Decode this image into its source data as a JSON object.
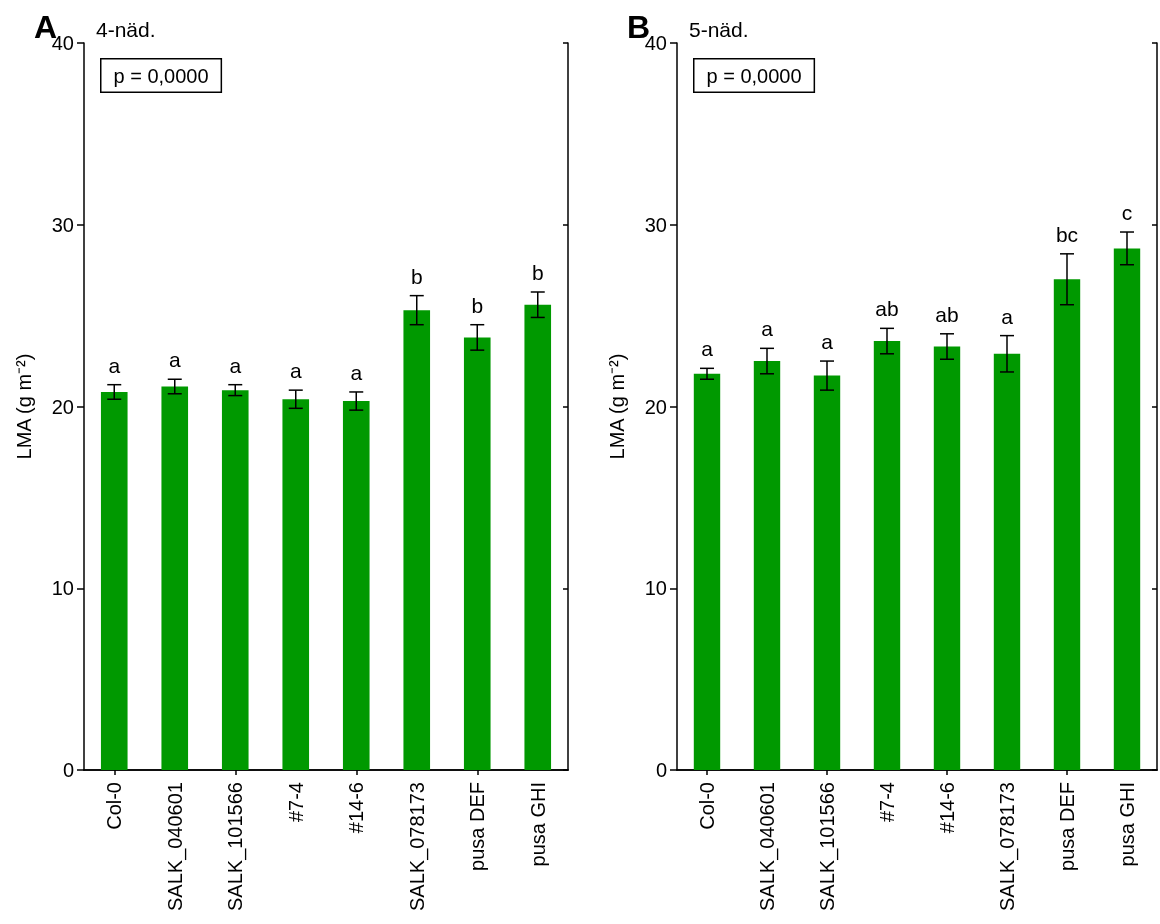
{
  "chart_data": [
    {
      "type": "bar",
      "title": "A",
      "subtitle": "4-näd.",
      "ylabel": "LMA (g m⁻²)",
      "categories": [
        "Col-0",
        "SALK_040601",
        "SALK_101566",
        "#7-4",
        "#14-6",
        "SALK_078173",
        "pusa DEF",
        "pusa GHI"
      ],
      "values": [
        20.8,
        21.1,
        20.9,
        20.4,
        20.3,
        25.3,
        23.8,
        25.6
      ],
      "errors": [
        0.4,
        0.4,
        0.3,
        0.5,
        0.5,
        0.8,
        0.7,
        0.7
      ],
      "color": "#009900",
      "ylim": [
        0,
        40
      ],
      "yticks": [
        0,
        10,
        20,
        30,
        40
      ],
      "annotations": [
        "p = 0,0000",
        {
          "text": "a",
          "x": "Col-0",
          "y": 21.2
        },
        {
          "text": "a",
          "x": "SALK_040601",
          "y": 21.5
        },
        {
          "text": "a",
          "x": "SALK_101566",
          "y": 21.2
        },
        {
          "text": "a",
          "x": "#7-4",
          "y": 20.9
        },
        {
          "text": "a",
          "x": "#14-6",
          "y": 20.8
        },
        {
          "text": "b",
          "x": "SALK_078173",
          "y": 26.1
        },
        {
          "text": "b",
          "x": "pusa DEF",
          "y": 24.5
        },
        {
          "text": "b",
          "x": "pusa GHI",
          "y": 26.3
        }
      ]
    },
    {
      "type": "bar",
      "title": "B",
      "subtitle": "5-näd.",
      "ylabel": "LMA (g m⁻²)",
      "categories": [
        "Col-0",
        "SALK_040601",
        "SALK_101566",
        "#7-4",
        "#14-6",
        "SALK_078173",
        "pusa DEF",
        "pusa GHI"
      ],
      "values": [
        21.8,
        22.5,
        21.7,
        23.6,
        23.3,
        22.9,
        27.0,
        28.7
      ],
      "errors": [
        0.3,
        0.7,
        0.8,
        0.7,
        0.7,
        1.0,
        1.4,
        0.9
      ],
      "color": "#009900",
      "ylim": [
        0,
        40
      ],
      "yticks": [
        0,
        10,
        20,
        30,
        40
      ],
      "annotations": [
        "p = 0,0000",
        {
          "text": "a",
          "x": "Col-0",
          "y": 22.1
        },
        {
          "text": "a",
          "x": "SALK_040601",
          "y": 23.2
        },
        {
          "text": "a",
          "x": "SALK_101566",
          "y": 22.5
        },
        {
          "text": "ab",
          "x": "#7-4",
          "y": 24.3
        },
        {
          "text": "ab",
          "x": "#14-6",
          "y": 24.0
        },
        {
          "text": "a",
          "x": "SALK_078173",
          "y": 23.9
        },
        {
          "text": "bc",
          "x": "pusa DEF",
          "y": 28.4
        },
        {
          "text": "c",
          "x": "pusa GHI",
          "y": 29.6
        }
      ]
    }
  ]
}
